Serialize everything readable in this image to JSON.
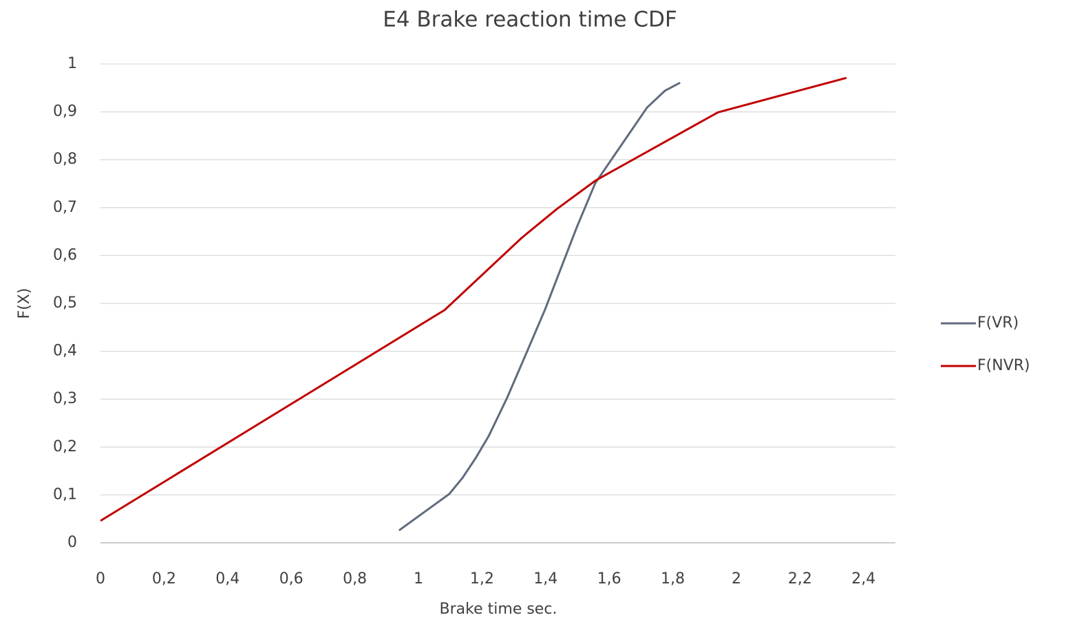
{
  "chart_data": {
    "type": "line",
    "title": "E4 Brake reaction time CDF",
    "x_label": "Brake time sec.",
    "y_label": "F(X)",
    "xlim": [
      0,
      2.5
    ],
    "ylim": [
      0,
      1
    ],
    "xticks": [
      0,
      {
        "value": 0.2,
        "label": "0,2"
      },
      {
        "value": 0.4,
        "label": "0,4"
      },
      {
        "value": 0.6,
        "label": "0,6"
      },
      {
        "value": 0.8,
        "label": "0,8"
      },
      1,
      {
        "value": 1.2,
        "label": "1,2"
      },
      {
        "value": 1.4,
        "label": "1,4"
      },
      {
        "value": 1.6,
        "label": "1,6"
      },
      {
        "value": 1.8,
        "label": "1,8"
      },
      2,
      {
        "value": 2.2,
        "label": "2,2"
      },
      {
        "value": 2.4,
        "label": "2,4"
      }
    ],
    "yticks": [
      0,
      {
        "value": 0.1,
        "label": "0,1"
      },
      {
        "value": 0.2,
        "label": "0,2"
      },
      {
        "value": 0.3,
        "label": "0,3"
      },
      {
        "value": 0.4,
        "label": "0,4"
      },
      {
        "value": 0.5,
        "label": "0,5"
      },
      {
        "value": 0.6,
        "label": "0,6"
      },
      {
        "value": 0.7,
        "label": "0,7"
      },
      {
        "value": 0.8,
        "label": "0,8"
      },
      {
        "value": 0.9,
        "label": "0,9"
      },
      1
    ],
    "grid": true,
    "legend": "right",
    "series": [
      {
        "name": "F(VR)",
        "color": "#5f6b7d",
        "x": [
          0.939,
          1.097,
          1.139,
          1.18,
          1.221,
          1.279,
          1.34,
          1.398,
          1.498,
          1.556,
          1.719,
          1.775,
          1.823
        ],
        "values": [
          0.026,
          0.102,
          0.136,
          0.177,
          0.223,
          0.303,
          0.397,
          0.487,
          0.659,
          0.751,
          0.909,
          0.944,
          0.961
        ]
      },
      {
        "name": "F(NVR)",
        "color": "#c00000",
        "x": [
          0,
          1.082,
          1.325,
          1.437,
          1.558,
          1.942,
          2.346
        ],
        "values": [
          0.046,
          0.486,
          0.637,
          0.698,
          0.757,
          0.899,
          0.971
        ]
      }
    ]
  }
}
